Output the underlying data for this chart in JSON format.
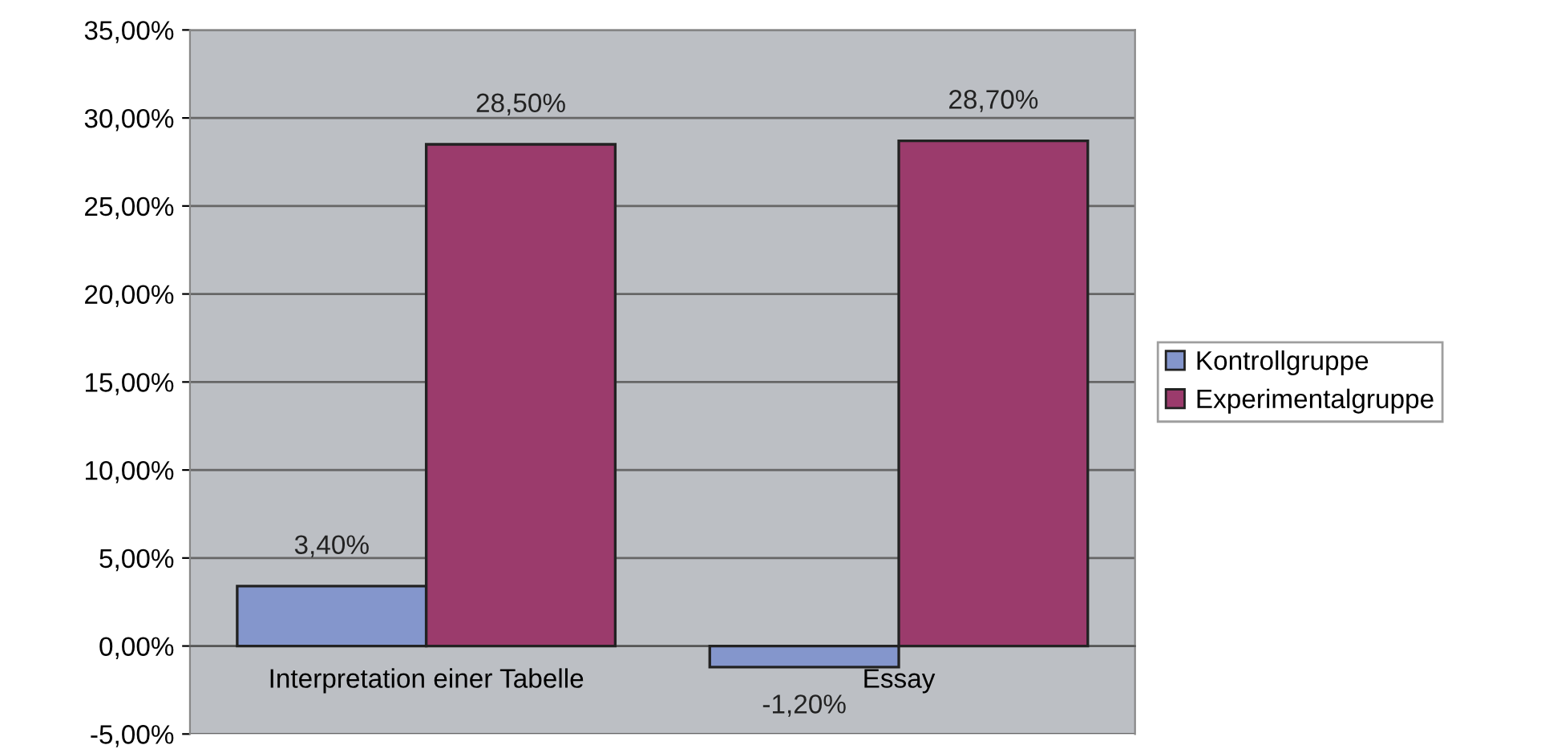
{
  "chart_data": {
    "type": "bar",
    "categories": [
      "Interpretation einer Tabelle",
      "Essay"
    ],
    "series": [
      {
        "name": "Kontrollgruppe",
        "color": "#8496cc",
        "values": [
          3.4,
          -1.2
        ],
        "value_labels": [
          "3,40%",
          "-1,20%"
        ]
      },
      {
        "name": "Experimentalgruppe",
        "color": "#9b3b6c",
        "values": [
          28.5,
          28.7
        ],
        "value_labels": [
          "28,50%",
          "28,70%"
        ]
      }
    ],
    "ylim": [
      -5,
      35
    ],
    "yticks": [
      {
        "value": -5,
        "label": "-5,00%"
      },
      {
        "value": 0,
        "label": "0,00%"
      },
      {
        "value": 5,
        "label": "5,00%"
      },
      {
        "value": 10,
        "label": "10,00%"
      },
      {
        "value": 15,
        "label": "15,00%"
      },
      {
        "value": 20,
        "label": "20,00%"
      },
      {
        "value": 25,
        "label": "25,00%"
      },
      {
        "value": 30,
        "label": "30,00%"
      },
      {
        "value": 35,
        "label": "35,00%"
      }
    ],
    "grid": "y",
    "legend": "right"
  }
}
